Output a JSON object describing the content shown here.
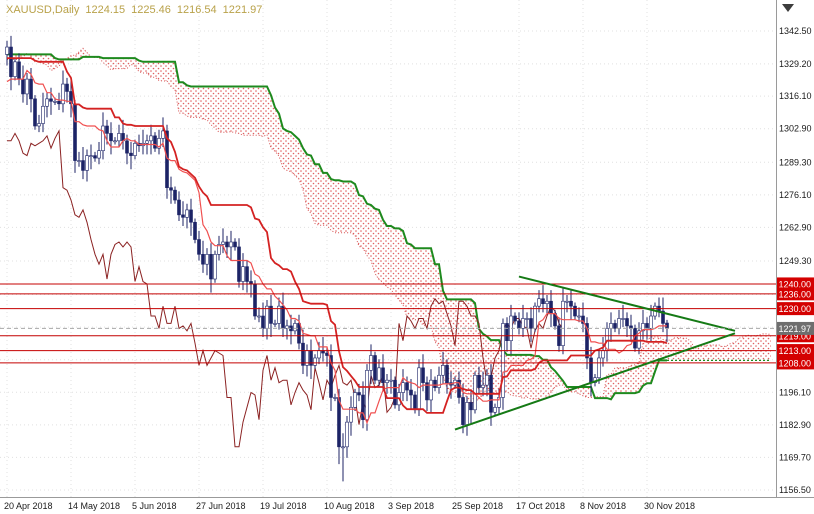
{
  "header": {
    "symbol_period": "XAUUSD,Daily",
    "open": "1224.15",
    "high": "1225.46",
    "low": "1216.54",
    "close": "1221.97"
  },
  "colors": {
    "background": "#ffffff",
    "grid": "#e0e0e0",
    "candle": "#1c2366",
    "bull": "#ffffff",
    "bear": "#1c2366",
    "tenkan": "#f05050",
    "kijun": "#d42222",
    "senkou_a": "#d65050",
    "senkou_b": "#1e8a1e",
    "cloud_dot": "#e06060",
    "chikou": "#8b2222",
    "level": "#c40000",
    "level_badge": "#d40000",
    "current_line": "#a8a8a8",
    "current_badge": "#6e6e6e",
    "trendline": "#157a15",
    "axis_text": "#1a1a1a",
    "axis_line": "#9a9a9a",
    "title_text": "#b9a24a",
    "shift_marker": "#3d3d3d"
  },
  "chart_data": {
    "type": "candlestick",
    "symbol": "XAUUSD",
    "timeframe": "Daily",
    "title": "XAUUSD,Daily 1224.15 1225.46 1216.54 1221.97",
    "indicator": "Ichimoku Kinko Hyo (9,26,52)",
    "ylim": [
      1156.5,
      1342.5
    ],
    "y_axis": {
      "labeled_ticks": [
        {
          "value": 1342.5,
          "label": "1342.50"
        },
        {
          "value": 1329.2,
          "label": "1329.20"
        },
        {
          "value": 1316.1,
          "label": "1316.10"
        },
        {
          "value": 1302.9,
          "label": "1302.90"
        },
        {
          "value": 1289.3,
          "label": "1289.30"
        },
        {
          "value": 1276.1,
          "label": "1276.10"
        },
        {
          "value": 1262.9,
          "label": "1262.90"
        },
        {
          "value": 1249.3,
          "label": "1249.30"
        },
        {
          "value": 1196.1,
          "label": "1196.10"
        },
        {
          "value": 1182.9,
          "label": "1182.90"
        },
        {
          "value": 1169.7,
          "label": "1169.70"
        },
        {
          "value": 1156.5,
          "label": "1156.50"
        }
      ],
      "unlabeled_ticks": [
        1209.3,
        1222.5,
        1235.7
      ]
    },
    "x_axis": {
      "labels": [
        {
          "bar": 0,
          "text": "20 Apr 2018"
        },
        {
          "bar": 16,
          "text": "14 May 2018"
        },
        {
          "bar": 32,
          "text": "5 Jun 2018"
        },
        {
          "bar": 48,
          "text": "27 Jun 2018"
        },
        {
          "bar": 64,
          "text": "19 Jul 2018"
        },
        {
          "bar": 80,
          "text": "10 Aug 2018"
        },
        {
          "bar": 96,
          "text": "3 Sep 2018"
        },
        {
          "bar": 112,
          "text": "25 Sep 2018"
        },
        {
          "bar": 128,
          "text": "17 Oct 2018"
        },
        {
          "bar": 144,
          "text": "8 Nov 2018"
        },
        {
          "bar": 160,
          "text": "30 Nov 2018"
        }
      ]
    },
    "first_open": 1308,
    "prehistory_closes": [
      1312,
      1319,
      1327,
      1340,
      1348,
      1355,
      1340,
      1335,
      1330,
      1340,
      1345,
      1352,
      1358,
      1348,
      1338,
      1330,
      1322,
      1316,
      1308,
      1318,
      1325,
      1330,
      1340,
      1350,
      1355,
      1352,
      1345,
      1340,
      1334,
      1328,
      1320,
      1314,
      1317,
      1323,
      1330,
      1336,
      1342,
      1347,
      1350,
      1345,
      1340,
      1335,
      1328,
      1322,
      1318,
      1312,
      1310,
      1315,
      1322,
      1330,
      1338,
      1345,
      1350,
      1346,
      1340,
      1333,
      1327,
      1320,
      1315,
      1310,
      1312,
      1318,
      1325,
      1332,
      1340,
      1347,
      1353,
      1348,
      1341,
      1335,
      1329,
      1323,
      1317,
      1311,
      1314,
      1320,
      1327,
      1333
    ],
    "closes": [
      1336,
      1324,
      1330,
      1323,
      1317,
      1323,
      1315,
      1304,
      1305,
      1312,
      1315,
      1314,
      1314,
      1313,
      1321,
      1318,
      1313,
      1290,
      1290,
      1286,
      1292,
      1292,
      1291,
      1294,
      1304,
      1301,
      1298,
      1298,
      1301,
      1298,
      1293,
      1292,
      1297,
      1296,
      1297,
      1298,
      1300,
      1295,
      1299,
      1302,
      1279,
      1278,
      1274,
      1268,
      1267,
      1270,
      1265,
      1258,
      1252,
      1248,
      1252,
      1242,
      1252,
      1256,
      1257,
      1255,
      1257,
      1255,
      1241,
      1247,
      1241,
      1240,
      1227,
      1227,
      1222,
      1231,
      1224,
      1224,
      1231,
      1222,
      1223,
      1221,
      1224,
      1216,
      1207,
      1213,
      1207,
      1210,
      1213,
      1212,
      1211,
      1194,
      1194,
      1174,
      1174,
      1184,
      1190,
      1196,
      1195,
      1185,
      1205,
      1211,
      1201,
      1206,
      1200,
      1201,
      1201,
      1191,
      1196,
      1200,
      1197,
      1195,
      1189,
      1206,
      1200,
      1193,
      1201,
      1198,
      1203,
      1207,
      1200,
      1199,
      1201,
      1194,
      1183,
      1192,
      1189,
      1203,
      1198,
      1199,
      1203,
      1188,
      1190,
      1194,
      1224,
      1217,
      1227,
      1225,
      1222,
      1226,
      1226,
      1222,
      1231,
      1234,
      1232,
      1233,
      1228,
      1223,
      1215,
      1233,
      1233,
      1231,
      1227,
      1227,
      1224,
      1210,
      1200,
      1202,
      1210,
      1213,
      1222,
      1224,
      1222,
      1226,
      1226,
      1223,
      1222,
      1214,
      1221,
      1224,
      1222,
      1227,
      1231,
      1229,
      1224,
      1221.97
    ],
    "last_bar": {
      "open": 1224.15,
      "high": 1225.46,
      "low": 1216.54,
      "close": 1221.97
    },
    "wick_overrides": {
      "17": {
        "low": 1285
      },
      "83": {
        "low": 1167
      },
      "84": {
        "low": 1160
      },
      "124": {
        "low": 1189,
        "high": 1226
      }
    },
    "levels": [
      {
        "price": 1240.0,
        "label": "1240.00"
      },
      {
        "price": 1236.0,
        "label": "1236.00"
      },
      {
        "price": 1230.0,
        "label": "1230.00"
      },
      {
        "price": 1219.0,
        "label": "1219.00"
      },
      {
        "price": 1213.0,
        "label": "1213.00"
      },
      {
        "price": 1208.0,
        "label": "1208.00"
      }
    ],
    "current_price": {
      "value": 1221.97,
      "label": "1221.97"
    },
    "trendlines": [
      {
        "name": "triangle-upper",
        "from_bar": 128,
        "from_price": 1243,
        "to_bar": 182,
        "to_price": 1221
      },
      {
        "name": "triangle-lower",
        "from_bar": 112,
        "from_price": 1181,
        "to_bar": 182,
        "to_price": 1220
      }
    ]
  }
}
